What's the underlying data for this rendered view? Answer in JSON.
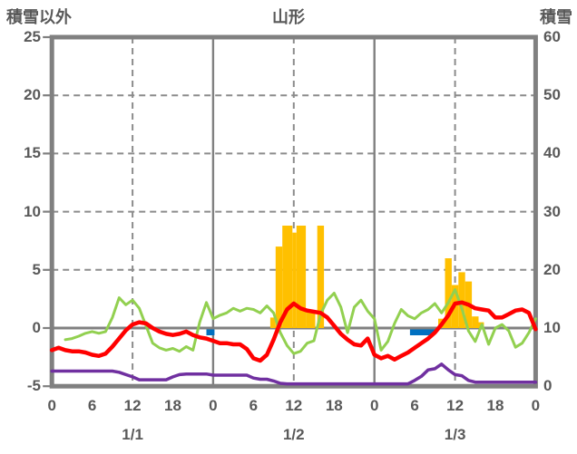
{
  "header": {
    "left_axis_corner": "積雪以外",
    "title": "山形",
    "right_axis_corner": "積雪"
  },
  "colors": {
    "red_line": "#FF0000",
    "green_line": "#92D050",
    "purple_line": "#7030A0",
    "orange_bars": "#FFC000",
    "blue_bars": "#0070C0",
    "frame": "#808080",
    "grid": "#8C8C8C",
    "text": "#595959",
    "background": "#FFFFFF"
  },
  "chart_data": {
    "type": "line",
    "title": "山形",
    "x_unit": "hour",
    "x_range_hours": [
      0,
      72
    ],
    "grid": "on",
    "legend": "none",
    "left_axis": {
      "title": "積雪以外",
      "min": -5,
      "max": 25,
      "step": 5,
      "ticks": [
        25,
        20,
        15,
        10,
        5,
        0,
        -5
      ]
    },
    "right_axis": {
      "title": "積雪",
      "min": 0,
      "max": 60,
      "step": 10,
      "ticks": [
        60,
        50,
        40,
        30,
        20,
        10,
        0
      ]
    },
    "x_ticks": {
      "interval_hours": 6,
      "labels": [
        "0",
        "6",
        "12",
        "18",
        "0",
        "6",
        "12",
        "18",
        "0",
        "6",
        "12",
        "18",
        "0"
      ],
      "day_labels": [
        {
          "label": "1/1",
          "hour": 12
        },
        {
          "label": "1/2",
          "hour": 36
        },
        {
          "label": "1/3",
          "hour": 60
        }
      ]
    },
    "gridlines": {
      "h_dashed_values": [
        20,
        15,
        10,
        5
      ],
      "h_solid_values": [
        0
      ],
      "v_solid_hours": [
        24,
        48
      ],
      "v_dashed_hours": [
        12,
        36,
        60
      ]
    },
    "series": [
      {
        "name": "green-line",
        "color": "#92D050",
        "width": 3,
        "start_hour": 2,
        "values": [
          -1.0,
          -0.9,
          -0.7,
          -0.45,
          -0.3,
          -0.45,
          -0.3,
          0.9,
          2.6,
          2.0,
          2.4,
          1.7,
          0.2,
          -1.3,
          -1.7,
          -1.9,
          -1.75,
          -2.0,
          -1.6,
          -1.9,
          0.5,
          2.2,
          0.8,
          1.1,
          1.3,
          1.7,
          1.45,
          1.7,
          1.6,
          1.3,
          1.9,
          1.3,
          -0.4,
          -1.5,
          -2.2,
          -2.0,
          -1.3,
          -1.1,
          1.2,
          2.4,
          3.0,
          1.8,
          -0.4,
          1.8,
          2.4,
          1.45,
          0.8,
          -1.9,
          -1.15,
          0.4,
          1.6,
          1.05,
          0.8,
          1.3,
          1.6,
          2.1,
          1.3,
          2.2,
          3.3,
          1.7,
          -0.25,
          -1.15,
          0.3,
          -1.4,
          0.0,
          0.3,
          -0.25,
          -1.65,
          -1.3,
          -0.4,
          0.8
        ]
      },
      {
        "name": "purple-line",
        "color": "#7030A0",
        "width": 3.5,
        "start_hour": 0,
        "values": [
          -3.7,
          -3.7,
          -3.7,
          -3.7,
          -3.7,
          -3.7,
          -3.7,
          -3.7,
          -3.7,
          -3.7,
          -3.8,
          -4.0,
          -4.2,
          -4.45,
          -4.45,
          -4.45,
          -4.45,
          -4.45,
          -4.2,
          -4.0,
          -3.95,
          -3.95,
          -3.95,
          -3.95,
          -4.05,
          -4.05,
          -4.05,
          -4.05,
          -4.05,
          -4.05,
          -4.3,
          -4.4,
          -4.4,
          -4.55,
          -4.75,
          -4.8,
          -4.8,
          -4.8,
          -4.8,
          -4.8,
          -4.8,
          -4.8,
          -4.8,
          -4.8,
          -4.8,
          -4.8,
          -4.8,
          -4.8,
          -4.8,
          -4.8,
          -4.8,
          -4.8,
          -4.8,
          -4.8,
          -4.5,
          -4.15,
          -3.6,
          -3.5,
          -3.1,
          -3.6,
          -4.0,
          -4.1,
          -4.5,
          -4.65,
          -4.65,
          -4.65,
          -4.65,
          -4.65,
          -4.65,
          -4.65,
          -4.65,
          -4.65,
          -4.65
        ]
      },
      {
        "name": "red-line",
        "color": "#FF0000",
        "width": 4.5,
        "start_hour": 0,
        "values": [
          -1.9,
          -1.7,
          -1.9,
          -2.0,
          -2.0,
          -2.1,
          -2.3,
          -2.4,
          -2.2,
          -1.6,
          -0.9,
          -0.2,
          0.3,
          0.5,
          0.4,
          0.0,
          -0.3,
          -0.5,
          -0.6,
          -0.5,
          -0.3,
          -0.6,
          -0.8,
          -0.9,
          -1.1,
          -1.3,
          -1.3,
          -1.4,
          -1.4,
          -1.8,
          -2.6,
          -2.8,
          -2.3,
          -1.0,
          0.5,
          1.6,
          2.1,
          1.7,
          1.5,
          1.4,
          1.3,
          0.9,
          0.2,
          -0.5,
          -1.0,
          -1.4,
          -1.5,
          -0.9,
          -2.3,
          -2.6,
          -2.4,
          -2.7,
          -2.4,
          -2.1,
          -1.7,
          -1.3,
          -0.9,
          -0.4,
          0.3,
          1.1,
          2.1,
          2.2,
          2.0,
          1.7,
          1.6,
          1.5,
          0.9,
          0.9,
          1.2,
          1.5,
          1.6,
          1.3,
          -0.1
        ]
      }
    ],
    "orange_bars": {
      "name": "orange-bars",
      "color": "#FFC000",
      "axis": "left",
      "bars": [
        {
          "from": 32.5,
          "to": 33.3,
          "v": 0.9
        },
        {
          "from": 33.3,
          "to": 34.3,
          "v": 7.0
        },
        {
          "from": 34.3,
          "to": 35.8,
          "v": 8.8
        },
        {
          "from": 35.8,
          "to": 36.4,
          "v": 8.2
        },
        {
          "from": 36.4,
          "to": 37.8,
          "v": 8.8
        },
        {
          "from": 37.8,
          "to": 39.2,
          "v": 1.4
        },
        {
          "from": 39.5,
          "to": 40.5,
          "v": 8.8
        },
        {
          "from": 57.5,
          "to": 58.5,
          "v": 0.8
        },
        {
          "from": 58.5,
          "to": 59.5,
          "v": 6.0
        },
        {
          "from": 59.5,
          "to": 60.5,
          "v": 3.7
        },
        {
          "from": 60.5,
          "to": 61.5,
          "v": 4.8
        },
        {
          "from": 61.5,
          "to": 62.5,
          "v": 4.0
        },
        {
          "from": 62.5,
          "to": 63.5,
          "v": 1.0
        },
        {
          "from": 63.5,
          "to": 64.3,
          "v": 0.5
        }
      ]
    },
    "blue_bars": {
      "name": "blue-bars",
      "color": "#0070C0",
      "axis": "left",
      "bars": [
        {
          "from": 23.0,
          "to": 24.2,
          "v": -0.62
        },
        {
          "from": 53.3,
          "to": 57.0,
          "v": -0.62
        }
      ]
    }
  }
}
